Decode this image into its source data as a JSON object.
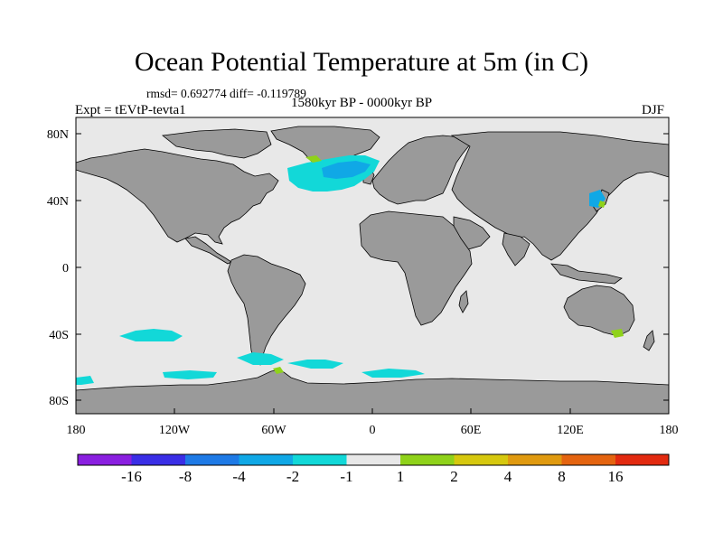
{
  "title": "Ocean Potential Temperature at 5m (in C)",
  "stats": "rmsd= 0.692774 diff= -0.119789",
  "experiment": "Expt = tEVtP-tevta1",
  "period": "1580kyr BP - 0000kyr BP",
  "season": "DJF",
  "axes": {
    "lat_ticks": [
      "80N",
      "40N",
      "0",
      "40S",
      "80S"
    ],
    "lon_ticks": [
      "180",
      "120W",
      "60W",
      "0",
      "60E",
      "120E",
      "180"
    ]
  },
  "colorbar": {
    "labels": [
      "-16",
      "-8",
      "-4",
      "-2",
      "-1",
      "1",
      "2",
      "4",
      "8",
      "16"
    ],
    "colors": [
      "#8a1fe0",
      "#3a2ee6",
      "#1e7ae6",
      "#10a8e6",
      "#12d8d8",
      "#e8e8e8",
      "#8fd21a",
      "#d6c80e",
      "#e09a10",
      "#e46410",
      "#e22a10"
    ]
  },
  "colors": {
    "land": "#9a9a9a",
    "ocean": "#e8e8e8",
    "cold_anomaly": "#12d8d8",
    "cool_anomaly": "#10a8e6",
    "warm_anomaly": "#8fd21a"
  }
}
